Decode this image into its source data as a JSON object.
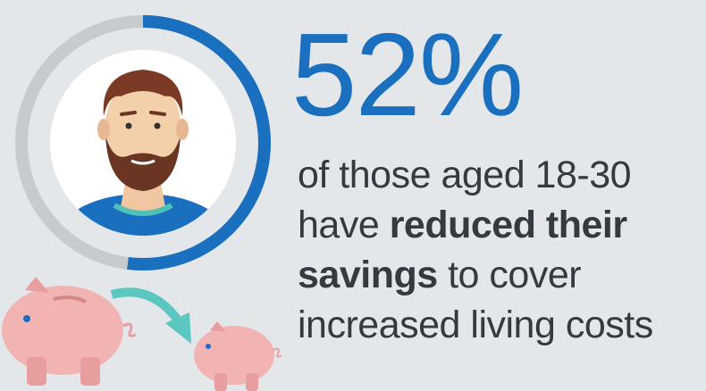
{
  "stat": {
    "value": 52,
    "label": "52%"
  },
  "body_lines": [
    [
      "of those aged 18-30"
    ],
    [
      "have",
      "reduced their"
    ],
    [
      "savings",
      "to cover"
    ],
    [
      "increased living costs"
    ]
  ]
}
